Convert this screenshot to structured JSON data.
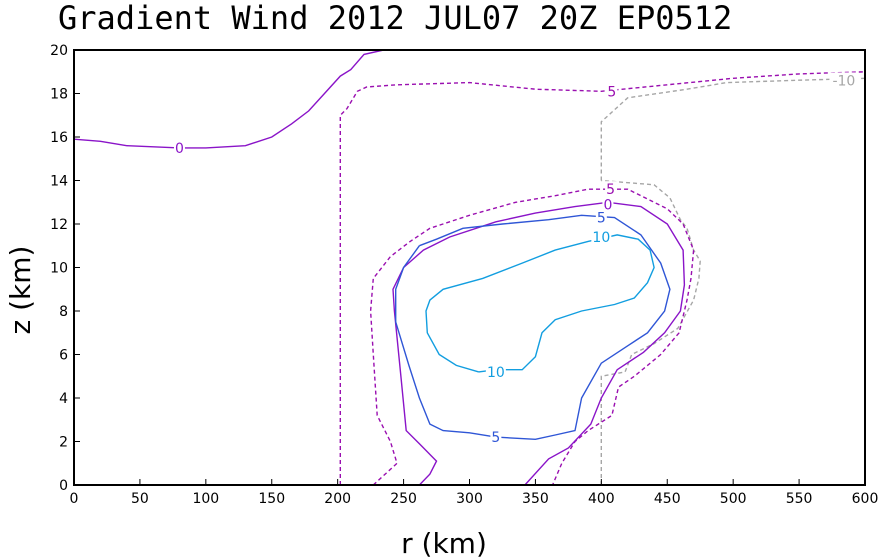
{
  "chart_data": {
    "type": "contour",
    "title": "Gradient Wind 2012 JUL07 20Z  EP0512",
    "xlabel": "r (km)",
    "ylabel": "z (km)",
    "xlim": [
      0,
      600
    ],
    "ylim": [
      0,
      20
    ],
    "xticks": [
      0,
      50,
      100,
      150,
      200,
      250,
      300,
      350,
      400,
      450,
      500,
      550,
      600
    ],
    "yticks": [
      0,
      2,
      4,
      6,
      8,
      10,
      12,
      14,
      16,
      18,
      20
    ],
    "grid": false,
    "contours": [
      {
        "level": -10,
        "style": "dashed",
        "color": "#a6a6a6",
        "points": [
          [
            400,
            0
          ],
          [
            400,
            5
          ],
          [
            418,
            5.2
          ],
          [
            423,
            6
          ],
          [
            440,
            6.5
          ],
          [
            458,
            7.2
          ],
          [
            470,
            8.5
          ],
          [
            474,
            9.5
          ],
          [
            475,
            10.3
          ],
          [
            470,
            10.8
          ],
          [
            465,
            11.8
          ],
          [
            460,
            12.2
          ],
          [
            452,
            13.2
          ],
          [
            440,
            13.8
          ],
          [
            400,
            14
          ]
        ]
      },
      {
        "level": -10,
        "style": "dashed",
        "color": "#a6a6a6",
        "points": [
          [
            400,
            14
          ],
          [
            400,
            16.7
          ],
          [
            420,
            17.8
          ],
          [
            465,
            18.2
          ],
          [
            495,
            18.5
          ],
          [
            545,
            18.6
          ],
          [
            600,
            18.7
          ]
        ]
      },
      {
        "level": 5,
        "style": "dashed",
        "color": "#9a0fb0",
        "points": [
          [
            202,
            0
          ],
          [
            202,
            17
          ],
          [
            207,
            17.3
          ],
          [
            215,
            18.1
          ],
          [
            222,
            18.3
          ],
          [
            245,
            18.4
          ],
          [
            300,
            18.5
          ],
          [
            350,
            18.2
          ],
          [
            400,
            18.1
          ],
          [
            450,
            18.4
          ],
          [
            500,
            18.7
          ],
          [
            550,
            18.9
          ],
          [
            600,
            19
          ]
        ]
      },
      {
        "level": 5,
        "style": "dashed",
        "color": "#9a0fb0",
        "points": [
          [
            227,
            0
          ],
          [
            245,
            1
          ],
          [
            240,
            2
          ],
          [
            230,
            3.2
          ],
          [
            227,
            6
          ],
          [
            225,
            8
          ],
          [
            227,
            9.5
          ],
          [
            240,
            10.5
          ],
          [
            255,
            11.2
          ],
          [
            270,
            11.8
          ],
          [
            300,
            12.4
          ],
          [
            335,
            13
          ],
          [
            365,
            13.3
          ],
          [
            390,
            13.6
          ],
          [
            420,
            13.6
          ],
          [
            450,
            12.7
          ],
          [
            462,
            12
          ],
          [
            470,
            10.8
          ],
          [
            468,
            9.5
          ],
          [
            465,
            8.5
          ],
          [
            459,
            7
          ],
          [
            445,
            6
          ],
          [
            425,
            5
          ],
          [
            413,
            4.5
          ],
          [
            408,
            3.2
          ],
          [
            390,
            2.5
          ],
          [
            380,
            2
          ],
          [
            370,
            1
          ],
          [
            363,
            0
          ]
        ]
      },
      {
        "level": 0,
        "style": "solid",
        "color": "#8a14c8",
        "points": [
          [
            0,
            15.9
          ],
          [
            20,
            15.8
          ],
          [
            40,
            15.6
          ],
          [
            80,
            15.5
          ],
          [
            100,
            15.5
          ],
          [
            130,
            15.6
          ],
          [
            150,
            16
          ],
          [
            165,
            16.6
          ],
          [
            178,
            17.2
          ],
          [
            190,
            18
          ],
          [
            202,
            18.8
          ],
          [
            210,
            19.1
          ],
          [
            220,
            19.8
          ],
          [
            235,
            20
          ]
        ]
      },
      {
        "level": 0,
        "style": "solid",
        "color": "#8a14c8",
        "points": [
          [
            262,
            0
          ],
          [
            270,
            0.5
          ],
          [
            275,
            1.1
          ],
          [
            262,
            1.9
          ],
          [
            252,
            2.5
          ],
          [
            248,
            5
          ],
          [
            243,
            8
          ],
          [
            242,
            9
          ],
          [
            250,
            10
          ],
          [
            265,
            10.8
          ],
          [
            285,
            11.4
          ],
          [
            320,
            12.1
          ],
          [
            350,
            12.5
          ],
          [
            380,
            12.8
          ],
          [
            405,
            13
          ],
          [
            430,
            12.8
          ],
          [
            450,
            12
          ],
          [
            462,
            10.8
          ],
          [
            463,
            9.2
          ],
          [
            460,
            8
          ],
          [
            448,
            7
          ],
          [
            432,
            6.1
          ],
          [
            412,
            5.3
          ],
          [
            400,
            4
          ],
          [
            392,
            2.8
          ],
          [
            375,
            1.7
          ],
          [
            360,
            1.2
          ],
          [
            342,
            0
          ]
        ]
      },
      {
        "level": 5,
        "style": "solid",
        "color": "#2f56d6",
        "points": [
          [
            262,
            11
          ],
          [
            275,
            11.3
          ],
          [
            295,
            11.8
          ],
          [
            325,
            12
          ],
          [
            360,
            12.2
          ],
          [
            385,
            12.4
          ],
          [
            410,
            12.3
          ],
          [
            430,
            11.5
          ],
          [
            445,
            10.2
          ],
          [
            452,
            9
          ],
          [
            448,
            8
          ],
          [
            435,
            7
          ],
          [
            420,
            6.4
          ],
          [
            400,
            5.6
          ],
          [
            385,
            4
          ],
          [
            380,
            2.5
          ],
          [
            365,
            2.3
          ],
          [
            350,
            2.1
          ],
          [
            320,
            2.2
          ],
          [
            300,
            2.4
          ],
          [
            280,
            2.5
          ],
          [
            270,
            2.8
          ],
          [
            262,
            4
          ],
          [
            254,
            5.5
          ],
          [
            244,
            7.5
          ],
          [
            244,
            9
          ],
          [
            250,
            10
          ],
          [
            262,
            11
          ]
        ]
      },
      {
        "level": 10,
        "style": "solid",
        "color": "#129ee0",
        "points": [
          [
            307,
            5.2
          ],
          [
            320,
            5.3
          ],
          [
            340,
            5.3
          ],
          [
            350,
            5.9
          ],
          [
            355,
            7
          ],
          [
            365,
            7.6
          ],
          [
            385,
            8
          ],
          [
            410,
            8.3
          ],
          [
            425,
            8.6
          ],
          [
            435,
            9.3
          ],
          [
            440,
            10
          ],
          [
            437,
            10.8
          ],
          [
            428,
            11.3
          ],
          [
            412,
            11.5
          ],
          [
            390,
            11.2
          ],
          [
            365,
            10.8
          ],
          [
            340,
            10.2
          ],
          [
            310,
            9.5
          ],
          [
            280,
            9
          ],
          [
            270,
            8.5
          ],
          [
            267,
            8
          ],
          [
            268,
            7
          ],
          [
            277,
            6
          ],
          [
            290,
            5.5
          ],
          [
            307,
            5.2
          ]
        ]
      }
    ],
    "contour_labels": [
      {
        "text": "0",
        "x": 80,
        "y": 15.5,
        "color": "#8a14c8"
      },
      {
        "text": "5",
        "x": 408,
        "y": 18.1,
        "color": "#9a0fb0"
      },
      {
        "text": "-10",
        "x": 584,
        "y": 18.6,
        "color": "#a6a6a6"
      },
      {
        "text": "5",
        "x": 407,
        "y": 13.6,
        "color": "#9a0fb0"
      },
      {
        "text": "0",
        "x": 405,
        "y": 12.9,
        "color": "#8a14c8"
      },
      {
        "text": "5",
        "x": 400,
        "y": 12.3,
        "color": "#2f56d6"
      },
      {
        "text": "10",
        "x": 400,
        "y": 11.4,
        "color": "#129ee0"
      },
      {
        "text": "10",
        "x": 320,
        "y": 5.2,
        "color": "#129ee0"
      },
      {
        "text": "5",
        "x": 320,
        "y": 2.2,
        "color": "#2f56d6"
      }
    ]
  }
}
